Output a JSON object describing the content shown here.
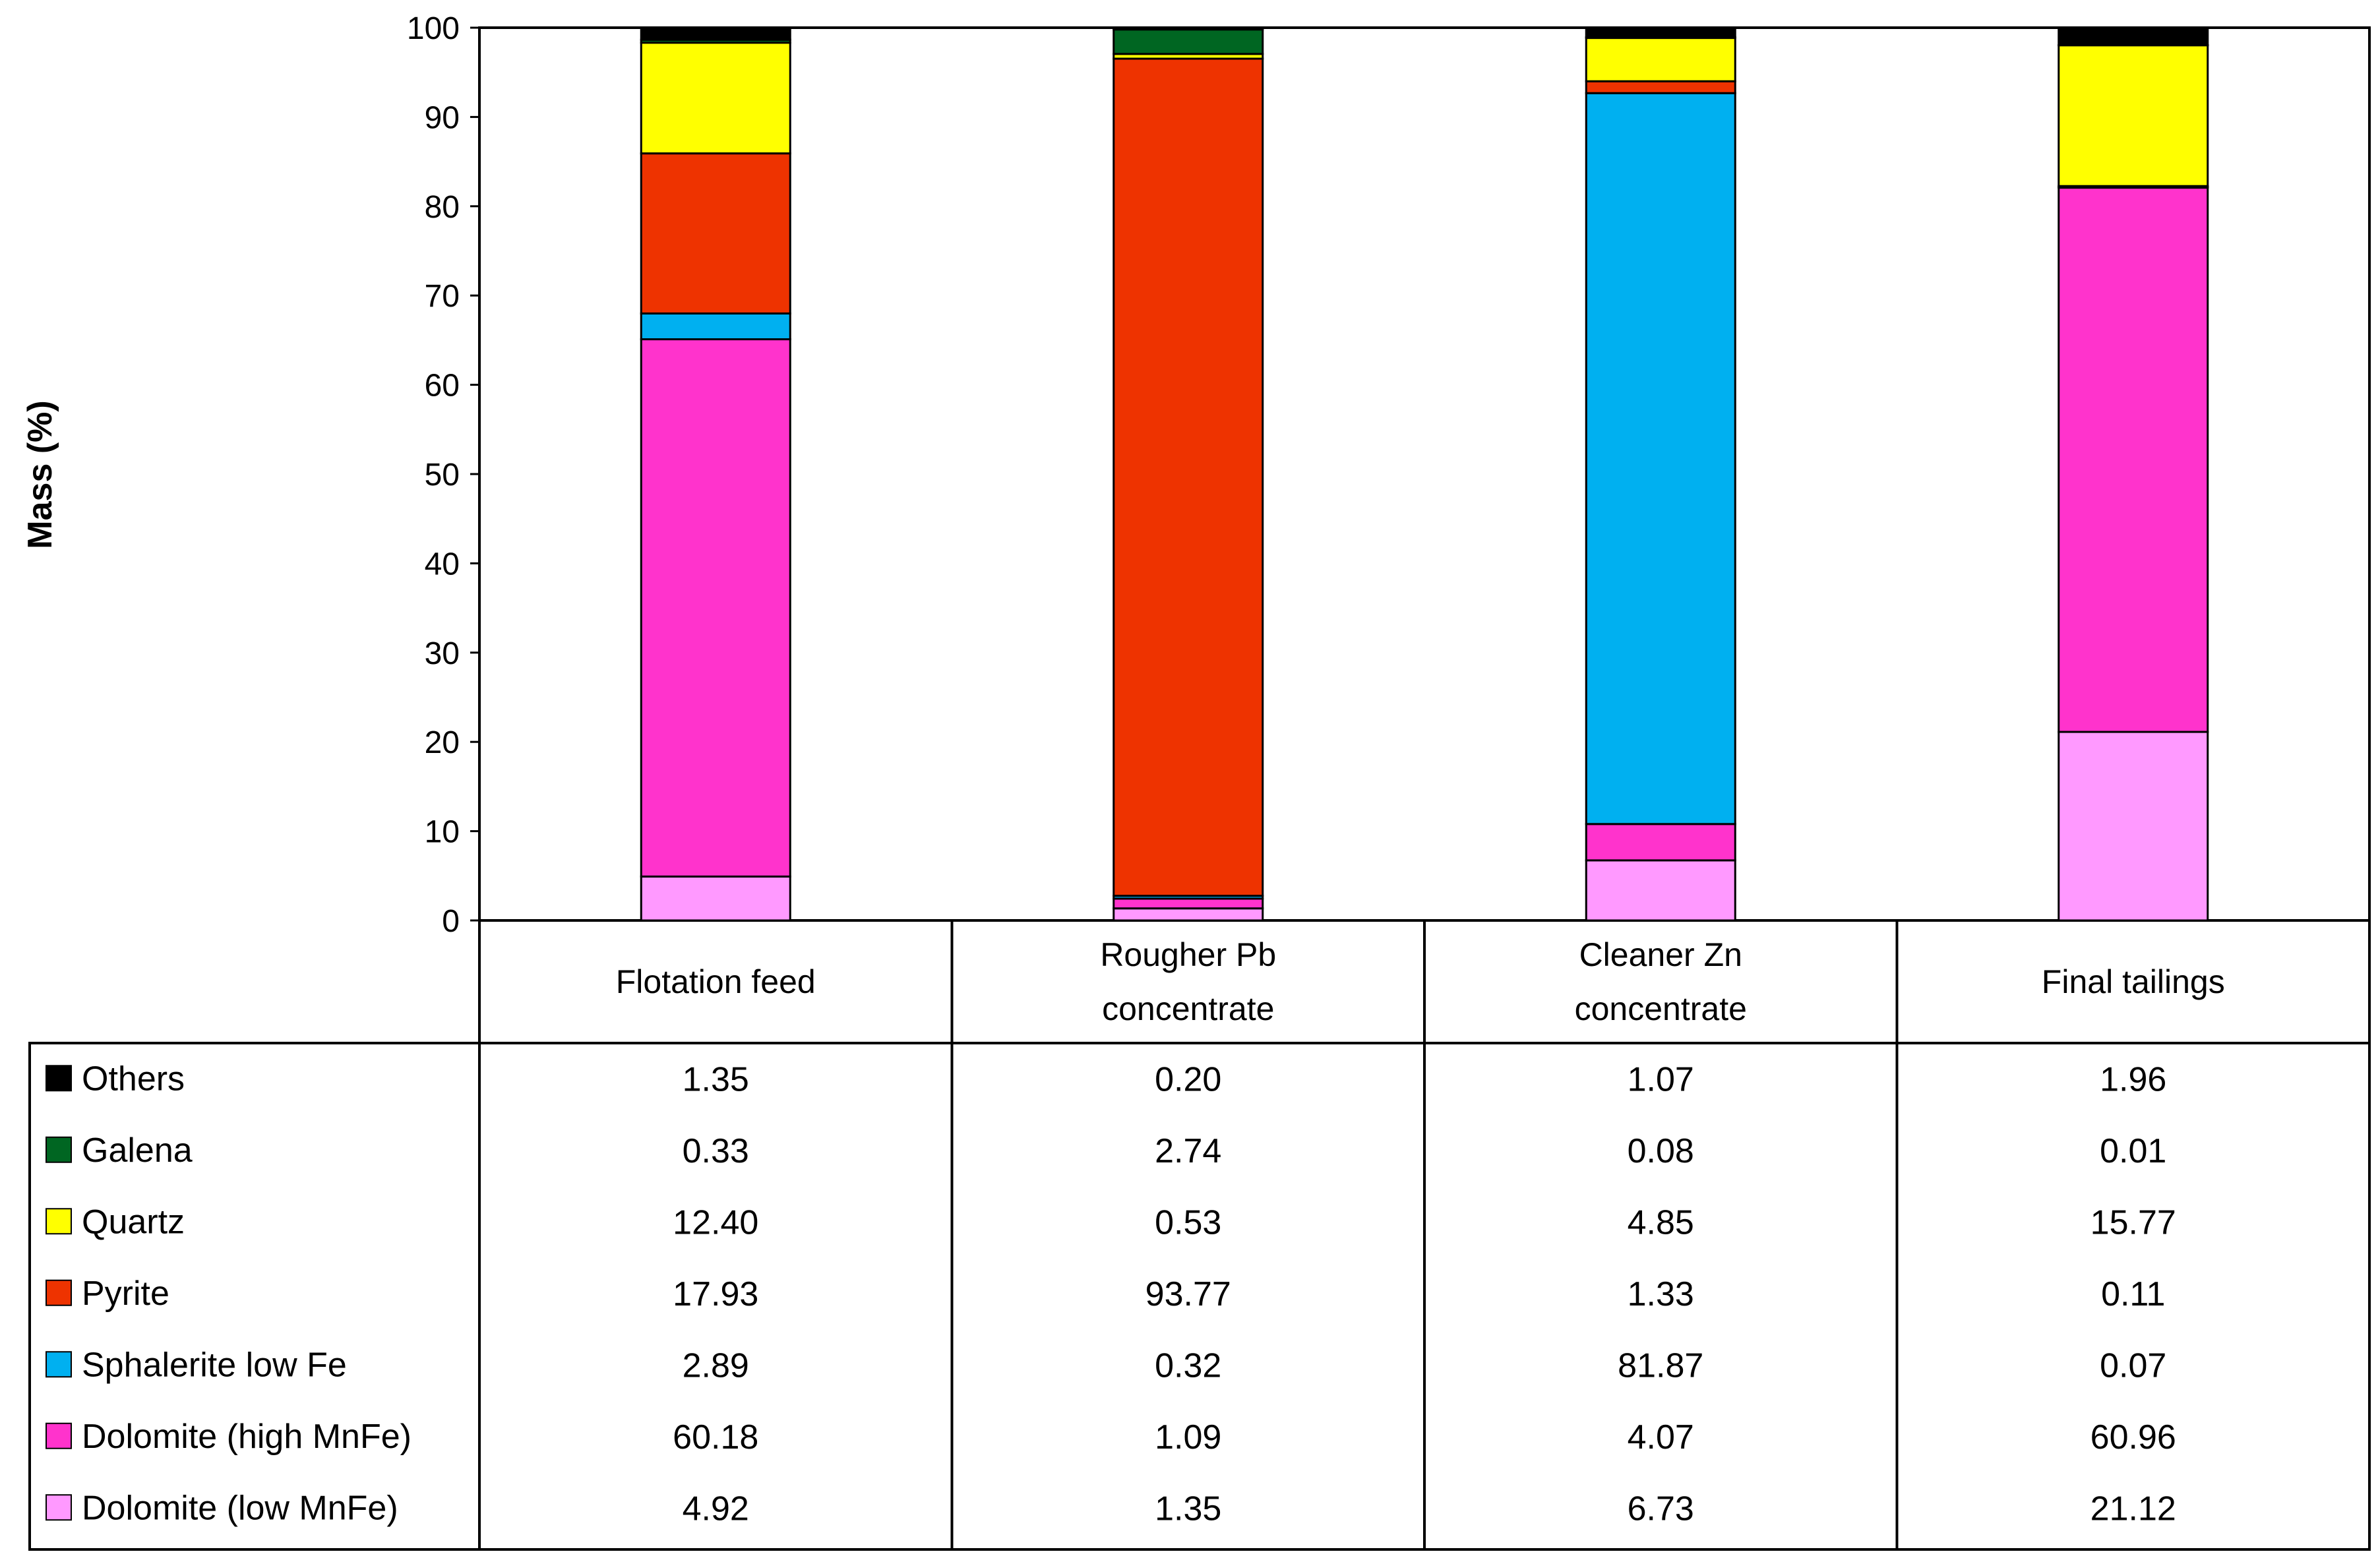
{
  "chart_data": {
    "type": "bar",
    "stacked": true,
    "ylabel": "Mass (%)",
    "ylim": [
      0,
      100
    ],
    "yticks": [
      0,
      10,
      20,
      30,
      40,
      50,
      60,
      70,
      80,
      90,
      100
    ],
    "categories": [
      [
        "Flotation feed"
      ],
      [
        "Rougher Pb",
        "concentrate"
      ],
      [
        "Cleaner Zn",
        "concentrate"
      ],
      [
        "Final tailings"
      ]
    ],
    "series": [
      {
        "name": "Dolomite (low MnFe)",
        "color": "#ff99ff",
        "values": [
          4.92,
          1.35,
          6.73,
          21.12
        ],
        "labels": [
          "4.92",
          "1.35",
          "6.73",
          "21.12"
        ]
      },
      {
        "name": "Dolomite (high MnFe)",
        "color": "#ff33cc",
        "values": [
          60.18,
          1.09,
          4.07,
          60.96
        ],
        "labels": [
          "60.18",
          "1.09",
          "4.07",
          "60.96"
        ]
      },
      {
        "name": "Sphalerite  low Fe",
        "color": "#00b0f0",
        "values": [
          2.89,
          0.32,
          81.87,
          0.07
        ],
        "labels": [
          "2.89",
          "0.32",
          "81.87",
          "0.07"
        ]
      },
      {
        "name": "Pyrite",
        "color": "#ee3300",
        "values": [
          17.93,
          93.77,
          1.33,
          0.11
        ],
        "labels": [
          "17.93",
          "93.77",
          "1.33",
          "0.11"
        ]
      },
      {
        "name": "Quartz",
        "color": "#ffff00",
        "values": [
          12.4,
          0.53,
          4.85,
          15.77
        ],
        "labels": [
          "12.40",
          "0.53",
          "4.85",
          "15.77"
        ]
      },
      {
        "name": "Galena",
        "color": "#006622",
        "values": [
          0.33,
          2.74,
          0.08,
          0.01
        ],
        "labels": [
          "0.33",
          "2.74",
          "0.08",
          "0.01"
        ]
      },
      {
        "name": "Others",
        "color": "#000000",
        "values": [
          1.35,
          0.2,
          1.07,
          1.96
        ],
        "labels": [
          "1.35",
          "0.20",
          "1.07",
          "1.96"
        ]
      }
    ],
    "table_row_order": [
      "Others",
      "Galena",
      "Quartz",
      "Pyrite",
      "Sphalerite  low Fe",
      "Dolomite (high MnFe)",
      "Dolomite (low MnFe)"
    ]
  }
}
